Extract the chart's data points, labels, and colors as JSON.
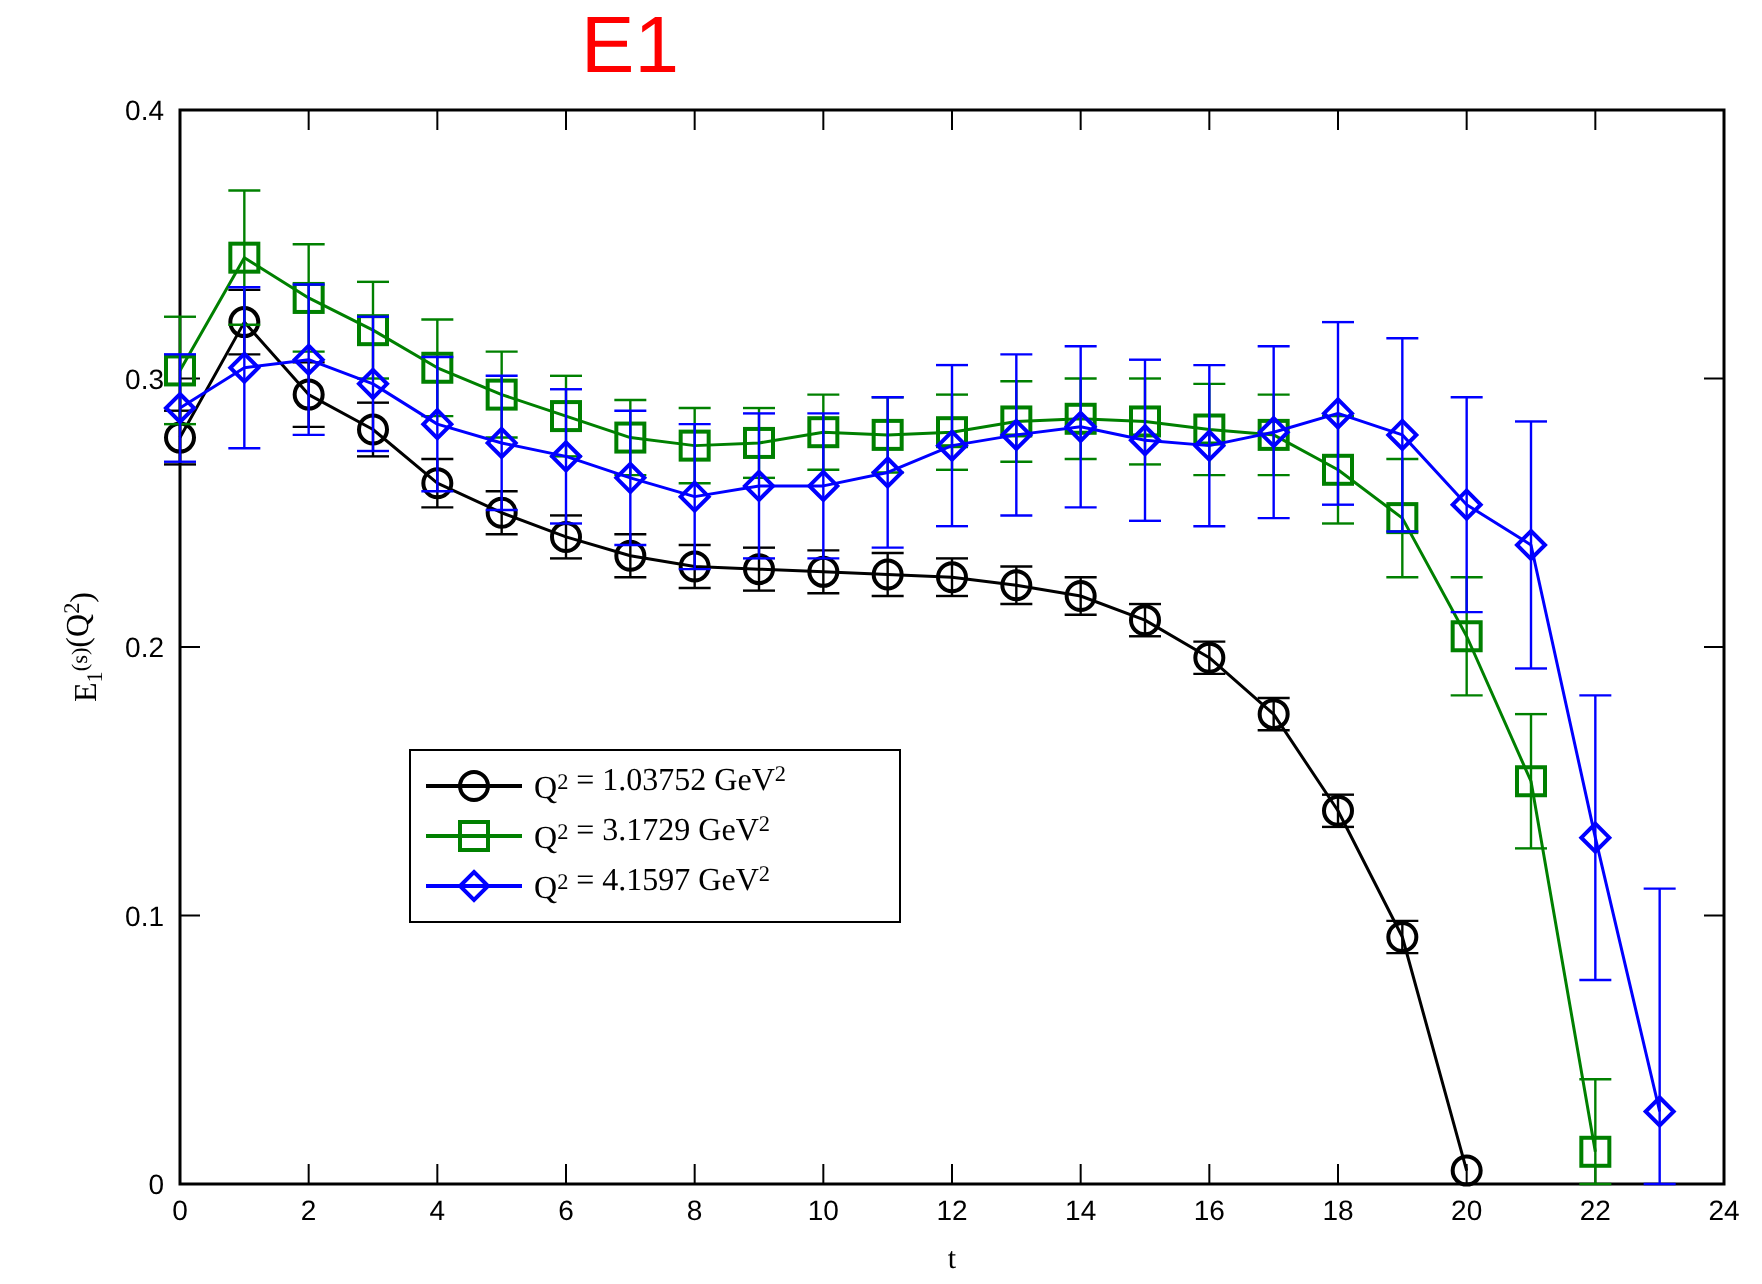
{
  "chart_data": {
    "type": "line",
    "title": "E1",
    "xlabel": "t",
    "ylabel": "E$_{1}$$^{(s)}$(Q$^{2}$)",
    "xlim": [
      0,
      24
    ],
    "xticks": [
      0,
      2,
      4,
      6,
      8,
      10,
      12,
      14,
      16,
      18,
      20,
      22,
      24
    ],
    "ylim": [
      0,
      0.4
    ],
    "yticks": [
      0,
      0.1,
      0.2,
      0.3,
      0.4
    ],
    "grid": false,
    "legend": "bottom left",
    "line_style": "solid",
    "series": [
      {
        "name": "Q$^{2}$ = 1.03752 GeV$^{2}$",
        "color": "#000000",
        "marker": "circle",
        "x": [
          0,
          1,
          2,
          3,
          4,
          5,
          6,
          7,
          8,
          9,
          10,
          11,
          12,
          13,
          14,
          15,
          16,
          17,
          18,
          19,
          20
        ],
        "values": [
          0.278,
          0.321,
          0.294,
          0.281,
          0.261,
          0.25,
          0.241,
          0.234,
          0.23,
          0.229,
          0.228,
          0.227,
          0.226,
          0.223,
          0.219,
          0.21,
          0.196,
          0.175,
          0.139,
          0.092,
          0.005
        ],
        "errors": [
          0.01,
          0.012,
          0.012,
          0.01,
          0.009,
          0.008,
          0.008,
          0.008,
          0.008,
          0.008,
          0.008,
          0.008,
          0.007,
          0.007,
          0.007,
          0.006,
          0.006,
          0.006,
          0.006,
          0.006,
          null
        ]
      },
      {
        "name": "Q$^{2}$ = 3.1729 GeV$^{2}$",
        "color": "#008000",
        "marker": "square",
        "x": [
          0,
          1,
          2,
          3,
          4,
          5,
          6,
          7,
          8,
          9,
          10,
          11,
          12,
          13,
          14,
          15,
          16,
          17,
          18,
          19,
          20,
          21,
          22
        ],
        "values": [
          0.303,
          0.345,
          0.33,
          0.318,
          0.304,
          0.294,
          0.286,
          0.278,
          0.275,
          0.276,
          0.28,
          0.279,
          0.28,
          0.284,
          0.285,
          0.284,
          0.281,
          0.279,
          0.266,
          0.248,
          0.204,
          0.15,
          0.012
        ],
        "errors": [
          0.02,
          0.025,
          0.02,
          0.018,
          0.018,
          0.016,
          0.015,
          0.014,
          0.014,
          0.013,
          0.014,
          0.014,
          0.014,
          0.015,
          0.015,
          0.016,
          0.017,
          0.015,
          0.02,
          0.022,
          0.022,
          0.025,
          [
            0,
            0.039
          ]
        ]
      },
      {
        "name": "Q$^{2}$ = 4.1597 GeV$^{2}$",
        "color": "#0000ff",
        "marker": "diamond",
        "x": [
          0,
          1,
          2,
          3,
          4,
          5,
          6,
          7,
          8,
          9,
          10,
          11,
          12,
          13,
          14,
          15,
          16,
          17,
          18,
          19,
          20,
          21,
          22,
          23
        ],
        "values": [
          0.289,
          0.304,
          0.307,
          0.298,
          0.283,
          0.276,
          0.271,
          0.263,
          0.256,
          0.26,
          0.26,
          0.265,
          0.275,
          0.279,
          0.282,
          0.277,
          0.275,
          0.28,
          0.287,
          0.279,
          0.253,
          0.238,
          0.129,
          0.027
        ],
        "errors": [
          0.02,
          0.03,
          0.028,
          0.025,
          0.025,
          0.025,
          0.025,
          0.025,
          0.027,
          0.027,
          0.027,
          0.028,
          0.03,
          0.03,
          0.03,
          0.03,
          0.03,
          0.032,
          0.034,
          0.036,
          0.04,
          0.046,
          0.053,
          [
            0,
            0.11
          ]
        ]
      }
    ]
  }
}
